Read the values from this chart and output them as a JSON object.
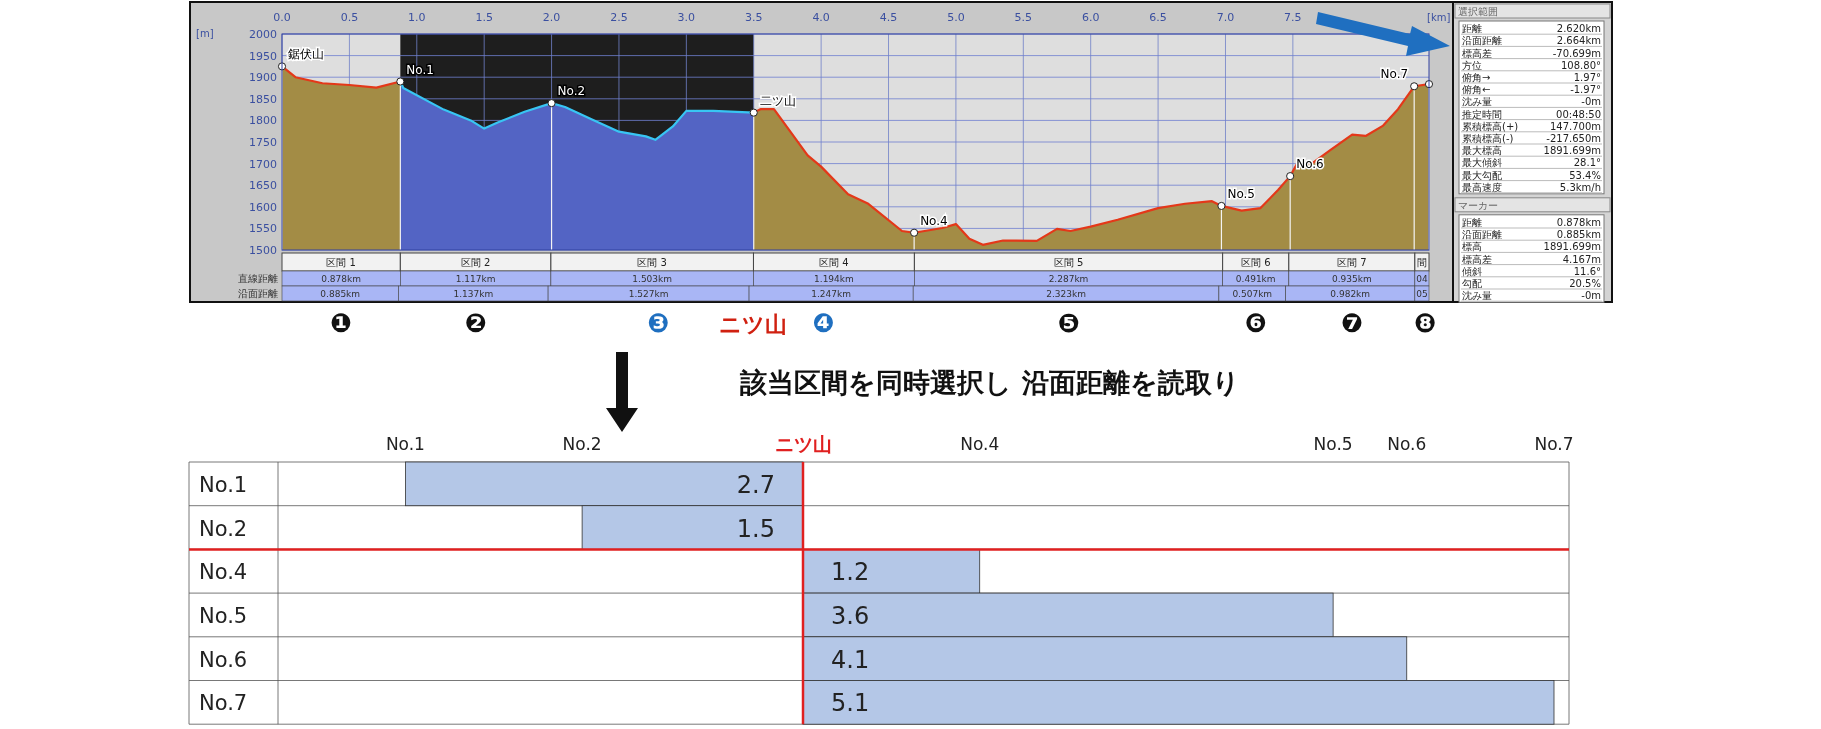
{
  "chart_data": [
    {
      "type": "area",
      "xlabel": "[km]",
      "ylabel": "[m]",
      "xlim": [
        0,
        8.51
      ],
      "ylim": [
        1500,
        2000
      ],
      "xticks": [
        {
          "value": 0,
          "label": "0.0"
        },
        0.5,
        {
          "value": 1,
          "label": "1.0"
        },
        1.5,
        {
          "value": 2,
          "label": "2.0"
        },
        2.5,
        {
          "value": 3,
          "label": "3.0"
        },
        3.5,
        {
          "value": 4,
          "label": "4.0"
        },
        4.5,
        {
          "value": 5,
          "label": "5.0"
        },
        5.5,
        {
          "value": 6,
          "label": "6.0"
        },
        6.5,
        {
          "value": 7,
          "label": "7.0"
        },
        7.5
      ],
      "yticks": [
        1500,
        1550,
        1600,
        1650,
        1700,
        1750,
        1800,
        1850,
        1900,
        1950,
        2000
      ],
      "grid": true,
      "bands": [
        {
          "axis": "x",
          "from": 0.878,
          "to": 3.5,
          "color": "#1e1e1e"
        }
      ],
      "series": [
        {
          "type": "area",
          "color": "#a38c45",
          "x": [
            0,
            0.1,
            0.3,
            0.5,
            0.7,
            0.878
          ],
          "values": [
            1925,
            1900,
            1886,
            1882,
            1876,
            1890
          ]
        },
        {
          "type": "area",
          "color": "#5364c4",
          "x": [
            0.878,
            0.9,
            1.2,
            1.4,
            1.5,
            1.6,
            1.8,
            2.0,
            2.1,
            2.3,
            2.5,
            2.7,
            2.77,
            2.9,
            3.0,
            3.2,
            3.5
          ],
          "values": [
            1890,
            1875,
            1825,
            1800,
            1781,
            1795,
            1820,
            1840,
            1831,
            1802,
            1774,
            1763,
            1755,
            1786,
            1822,
            1822,
            1818
          ]
        },
        {
          "type": "area",
          "color": "#a38c45",
          "x": [
            3.5,
            3.55,
            3.65,
            3.9,
            4.0,
            4.2,
            4.35,
            4.6,
            4.69,
            4.9,
            5.0,
            5.1,
            5.2,
            5.35,
            5.6,
            5.75,
            5.85,
            6.0,
            6.2,
            6.5,
            6.7,
            6.9,
            6.97,
            7.12,
            7.26,
            7.39,
            7.48,
            7.54,
            7.64,
            7.78,
            7.94,
            8.04,
            8.17,
            8.28,
            8.4,
            8.51
          ],
          "values": [
            1818,
            1826,
            1826,
            1719,
            1693,
            1629,
            1607,
            1544,
            1540,
            1551,
            1560,
            1526,
            1512,
            1522,
            1521,
            1549,
            1544,
            1554,
            1570,
            1597,
            1607,
            1613,
            1602,
            1591,
            1597,
            1639,
            1671,
            1705,
            1700,
            1732,
            1767,
            1764,
            1788,
            1826,
            1879,
            1884
          ]
        },
        {
          "type": "scatter",
          "color": "#ffffff",
          "marker": "circle",
          "x": [
            0,
            0.878,
            2.0,
            3.5,
            4.69,
            6.97,
            7.48,
            8.4,
            8.51
          ],
          "values": [
            1925,
            1890,
            1840,
            1818,
            1540,
            1602,
            1671,
            1879,
            1884
          ]
        }
      ],
      "annotations": [
        {
          "text": "鋸伏山",
          "x": 0,
          "y": 1925
        },
        {
          "text": "No.1",
          "x": 0.878,
          "y": 1890
        },
        {
          "text": "No.2",
          "x": 2.0,
          "y": 1840
        },
        {
          "text": "二ツ山",
          "x": 3.5,
          "y": 1818
        },
        {
          "text": "No.4",
          "x": 4.69,
          "y": 1540
        },
        {
          "text": "No.5",
          "x": 6.97,
          "y": 1602
        },
        {
          "text": "No.6",
          "x": 7.48,
          "y": 1671
        },
        {
          "text": "No.7",
          "x": 8.4,
          "y": 1879
        }
      ]
    },
    {
      "type": "other",
      "title": "該当区間を同時選択し 沿面距離を読取り",
      "categories": [
        "区間 1",
        "区間 2",
        "区間 3",
        "区間 4",
        "区間 5",
        "区間 6",
        "区間 7",
        "間"
      ],
      "series": [
        {
          "name": "直線距離",
          "values": [
            0.878,
            1.117,
            1.503,
            1.194,
            2.287,
            0.491,
            0.935,
            null
          ],
          "value_labels": [
            "0.878km",
            "1.117km",
            "1.503km",
            "1.194km",
            "2.287km",
            "0.491km",
            "0.935km",
            "04"
          ]
        },
        {
          "name": "沿面距離",
          "values": [
            0.885,
            1.137,
            1.527,
            1.247,
            2.323,
            0.507,
            0.982,
            null
          ],
          "value_labels": [
            "0.885km",
            "1.137km",
            "1.527km",
            "1.247km",
            "2.323km",
            "0.507km",
            "0.982km",
            "05"
          ]
        }
      ],
      "annotations": [
        "❶",
        "❷",
        "❸",
        "ニツ山",
        "❹",
        "❺",
        "❻",
        "❼",
        "❽"
      ]
    },
    {
      "type": "other",
      "title": "選択範囲",
      "categories": [
        "距離",
        "沿面距離",
        "標高差",
        "方位",
        "俯角→",
        "俯角←",
        "沈み量",
        "推定時間",
        "累積標高(+)",
        "累積標高(-)",
        "最大標高",
        "最大傾斜",
        "最大勾配",
        "最高速度"
      ],
      "value_labels": [
        "2.620km",
        "2.664km",
        "-70.699m",
        "108.80°",
        "1.97°",
        "-1.97°",
        "-0m",
        "00:48:50",
        "147.700m",
        "-217.650m",
        "1891.699m",
        "28.1°",
        "53.4%",
        "5.3km/h"
      ]
    },
    {
      "type": "other",
      "title": "マーカー",
      "categories": [
        "距離",
        "沿面距離",
        "標高",
        "標高差",
        "傾斜",
        "勾配",
        "沈み量"
      ],
      "value_labels": [
        "0.878km",
        "0.885km",
        "1891.699m",
        "4.167m",
        "11.6°",
        "20.5%",
        "-0m"
      ]
    },
    {
      "type": "bar",
      "orientation": "horizontal",
      "categories": [
        "No.1",
        "No.2"
      ],
      "values": [
        2.7,
        1.5
      ],
      "color": "#b4c7e7",
      "data_labels": true,
      "ref_lines": [
        {
          "axis": "x",
          "value": 0,
          "label": "ニツ山",
          "color": "#e02020"
        }
      ]
    },
    {
      "type": "bar",
      "orientation": "horizontal",
      "categories": [
        "No.4",
        "No.5",
        "No.6",
        "No.7"
      ],
      "values": [
        1.2,
        3.6,
        4.1,
        5.1
      ],
      "color": "#b4c7e7",
      "data_labels": true,
      "ref_lines": [
        {
          "axis": "x",
          "value": 0,
          "color": "#e02020"
        }
      ]
    }
  ]
}
